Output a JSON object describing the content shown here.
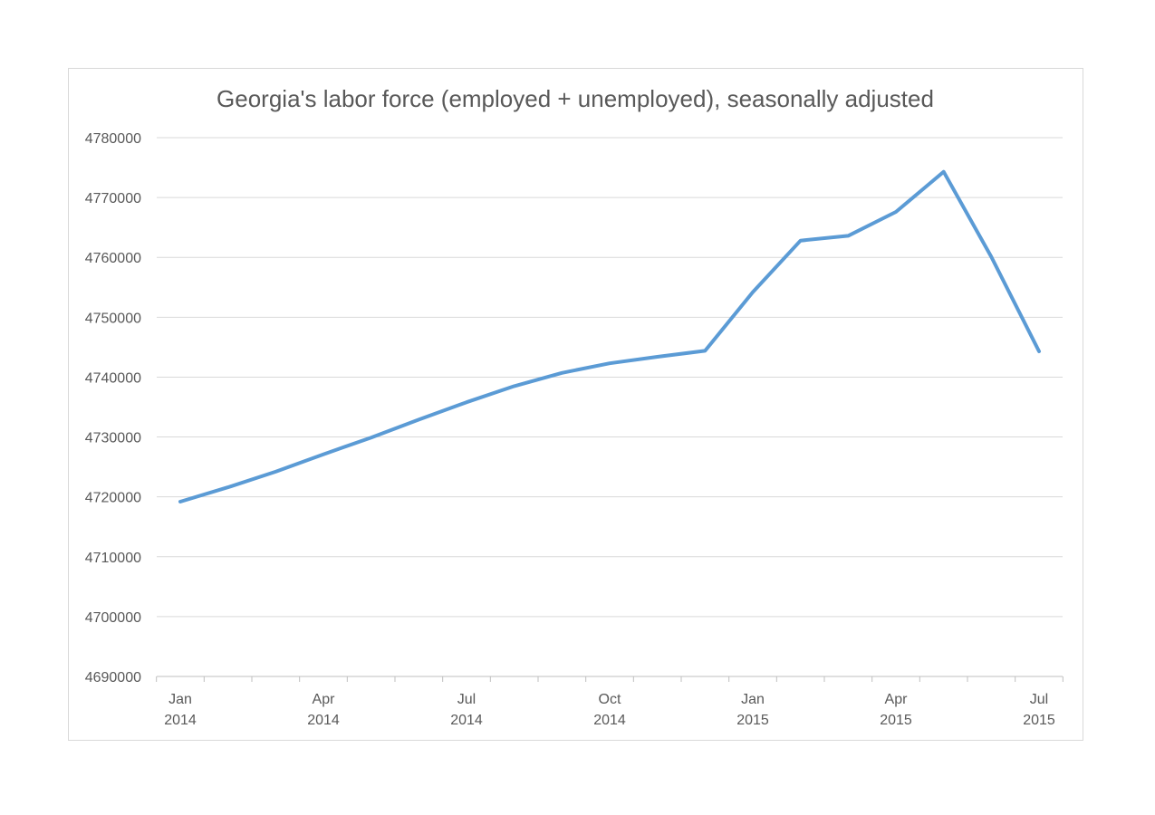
{
  "chart_data": {
    "type": "line",
    "title": "Georgia's labor force (employed + unemployed), seasonally adjusted",
    "xlabel": "",
    "ylabel": "",
    "x": [
      "2014-01",
      "2014-02",
      "2014-03",
      "2014-04",
      "2014-05",
      "2014-06",
      "2014-07",
      "2014-08",
      "2014-09",
      "2014-10",
      "2014-11",
      "2014-12",
      "2015-01",
      "2015-02",
      "2015-03",
      "2015-04",
      "2015-05",
      "2015-06",
      "2015-07"
    ],
    "x_tick_labels": [
      {
        "month": "Jan",
        "year": "2014",
        "index": 0
      },
      {
        "month": "Apr",
        "year": "2014",
        "index": 3
      },
      {
        "month": "Jul",
        "year": "2014",
        "index": 6
      },
      {
        "month": "Oct",
        "year": "2014",
        "index": 9
      },
      {
        "month": "Jan",
        "year": "2015",
        "index": 12
      },
      {
        "month": "Apr",
        "year": "2015",
        "index": 15
      },
      {
        "month": "Jul",
        "year": "2015",
        "index": 18
      }
    ],
    "series": [
      {
        "values": [
          4719200,
          4721600,
          4724200,
          4727100,
          4729900,
          4732900,
          4735800,
          4738500,
          4740700,
          4742300,
          4743400,
          4744400,
          4754200,
          4762800,
          4763600,
          4767600,
          4774300,
          4760100,
          4744300
        ],
        "color": "#5b9bd5"
      }
    ],
    "ylim": [
      4690000,
      4780000
    ],
    "y_ticks": [
      4690000,
      4700000,
      4710000,
      4720000,
      4730000,
      4740000,
      4750000,
      4760000,
      4770000,
      4780000
    ],
    "grid": true,
    "legend": "none"
  }
}
